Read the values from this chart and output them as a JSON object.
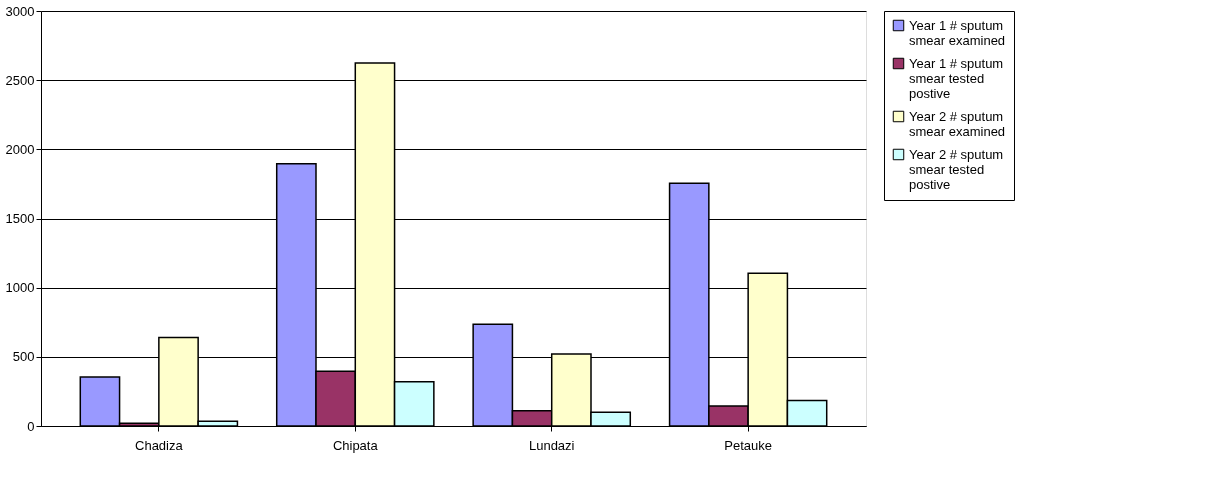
{
  "chart_data": {
    "type": "bar",
    "categories": [
      "Chadiza",
      "Chipata",
      "Lundazi",
      "Petauke"
    ],
    "series": [
      {
        "name": "Year 1 # sputum smear examined",
        "color": "#9999ff",
        "values": [
          355,
          1895,
          735,
          1755
        ]
      },
      {
        "name": "Year 1 # sputum smear tested postive",
        "color": "#993366",
        "values": [
          20,
          395,
          110,
          145
        ]
      },
      {
        "name": "Year 2 # sputum smear examined",
        "color": "#ffffcc",
        "values": [
          640,
          2625,
          520,
          1105
        ]
      },
      {
        "name": "Year 2 # sputum smear tested postive",
        "color": "#ccffff",
        "values": [
          35,
          320,
          100,
          185
        ]
      }
    ],
    "ylim": [
      0,
      3000
    ],
    "yticks": [
      0,
      500,
      1000,
      1500,
      2000,
      2500,
      3000
    ],
    "grid": "y",
    "legend": "right"
  }
}
